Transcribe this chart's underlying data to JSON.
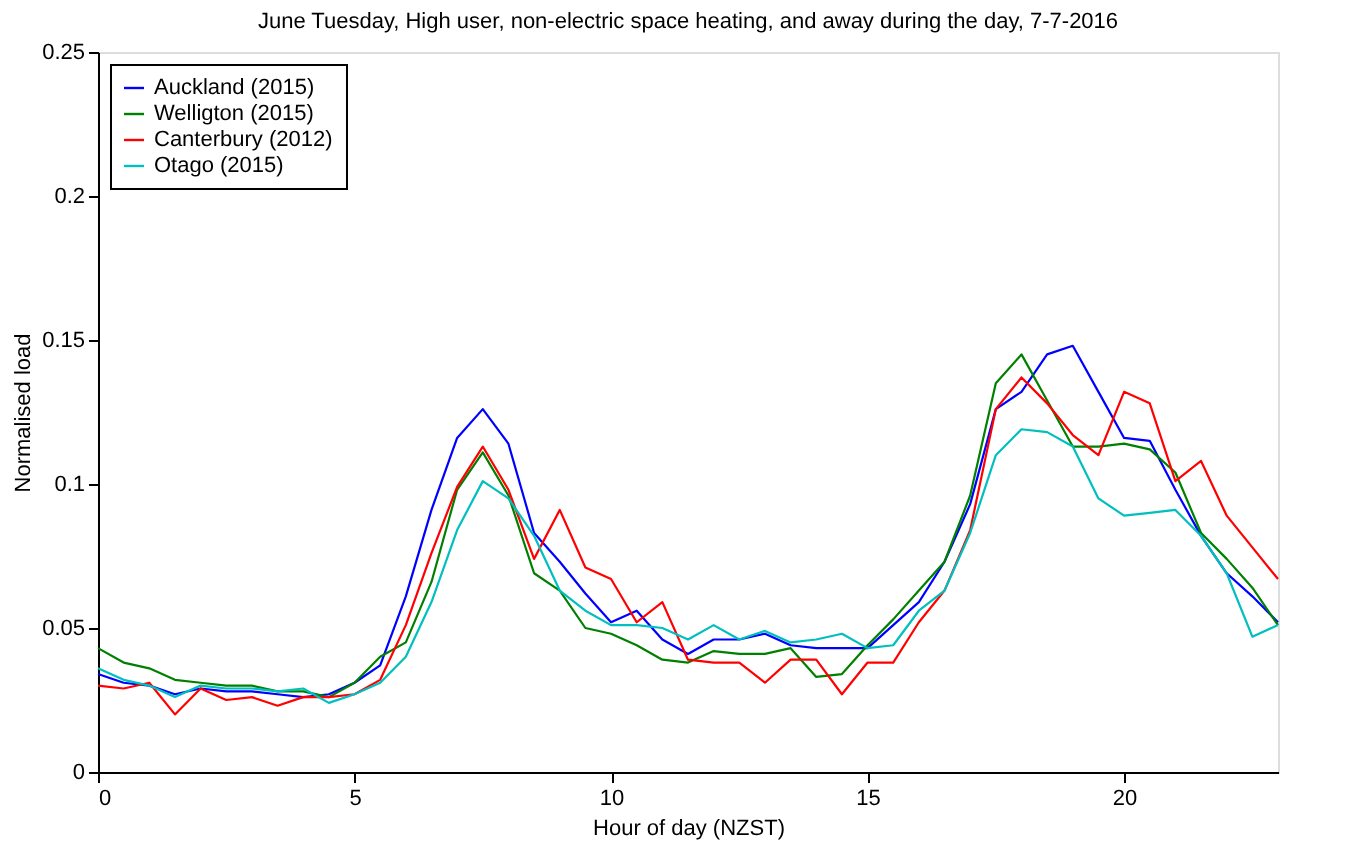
{
  "chart_data": {
    "type": "line",
    "title": "June Tuesday, High user, non-electric space heating, and away during the day, 7-7-2016",
    "xlabel": "Hour of day (NZST)",
    "ylabel": "Normalised load",
    "x": [
      0,
      0.5,
      1,
      1.5,
      2,
      2.5,
      3,
      3.5,
      4,
      4.5,
      5,
      5.5,
      6,
      6.5,
      7,
      7.5,
      8,
      8.5,
      9,
      9.5,
      10,
      10.5,
      11,
      11.5,
      12,
      12.5,
      13,
      13.5,
      14,
      14.5,
      15,
      15.5,
      16,
      16.5,
      17,
      17.5,
      18,
      18.5,
      19,
      19.5,
      20,
      20.5,
      21,
      21.5,
      22,
      22.5,
      23
    ],
    "series": [
      {
        "name": "Auckland (2015)",
        "color": "#0000ff",
        "values": [
          0.034,
          0.031,
          0.03,
          0.027,
          0.029,
          0.028,
          0.028,
          0.027,
          0.026,
          0.027,
          0.031,
          0.037,
          0.061,
          0.091,
          0.116,
          0.126,
          0.114,
          0.083,
          0.073,
          0.062,
          0.052,
          0.056,
          0.046,
          0.041,
          0.046,
          0.046,
          0.048,
          0.044,
          0.043,
          0.043,
          0.043,
          0.051,
          0.059,
          0.073,
          0.093,
          0.126,
          0.132,
          0.145,
          0.148,
          0.132,
          0.116,
          0.115,
          0.098,
          0.082,
          0.069,
          0.061,
          0.052
        ]
      },
      {
        "name": "Welligton (2015)",
        "color": "#008000",
        "values": [
          0.043,
          0.038,
          0.036,
          0.032,
          0.031,
          0.03,
          0.03,
          0.028,
          0.028,
          0.026,
          0.031,
          0.04,
          0.045,
          0.066,
          0.098,
          0.111,
          0.096,
          0.069,
          0.063,
          0.05,
          0.048,
          0.044,
          0.039,
          0.038,
          0.042,
          0.041,
          0.041,
          0.043,
          0.033,
          0.034,
          0.044,
          0.053,
          0.063,
          0.073,
          0.096,
          0.135,
          0.145,
          0.129,
          0.113,
          0.113,
          0.114,
          0.112,
          0.104,
          0.083,
          0.074,
          0.064,
          0.051
        ]
      },
      {
        "name": "Canterbury (2012)",
        "color": "#ff0000",
        "values": [
          0.03,
          0.029,
          0.031,
          0.02,
          0.029,
          0.025,
          0.026,
          0.023,
          0.026,
          0.026,
          0.027,
          0.032,
          0.051,
          0.076,
          0.099,
          0.113,
          0.098,
          0.074,
          0.091,
          0.071,
          0.067,
          0.052,
          0.059,
          0.039,
          0.038,
          0.038,
          0.031,
          0.039,
          0.039,
          0.027,
          0.038,
          0.038,
          0.052,
          0.063,
          0.084,
          0.126,
          0.137,
          0.128,
          0.117,
          0.11,
          0.132,
          0.128,
          0.101,
          0.108,
          0.089,
          0.078,
          0.067
        ]
      },
      {
        "name": "Otago (2015)",
        "color": "#00bfbf",
        "values": [
          0.036,
          0.032,
          0.03,
          0.026,
          0.03,
          0.029,
          0.029,
          0.028,
          0.029,
          0.024,
          0.027,
          0.031,
          0.04,
          0.059,
          0.084,
          0.101,
          0.095,
          0.082,
          0.063,
          0.056,
          0.051,
          0.051,
          0.05,
          0.046,
          0.051,
          0.046,
          0.049,
          0.045,
          0.046,
          0.048,
          0.043,
          0.044,
          0.056,
          0.063,
          0.083,
          0.11,
          0.119,
          0.118,
          0.113,
          0.095,
          0.089,
          0.09,
          0.091,
          0.082,
          0.069,
          0.047,
          0.051
        ]
      }
    ],
    "xlim": [
      0,
      23
    ],
    "xticks": [
      0,
      5,
      10,
      15,
      20
    ],
    "ylim": [
      0,
      0.25
    ],
    "yticks": [
      0,
      0.05,
      0.1,
      0.15,
      0.2,
      0.25
    ],
    "legend": "top left",
    "grid": false,
    "line_style": "solid",
    "marker": "none"
  }
}
